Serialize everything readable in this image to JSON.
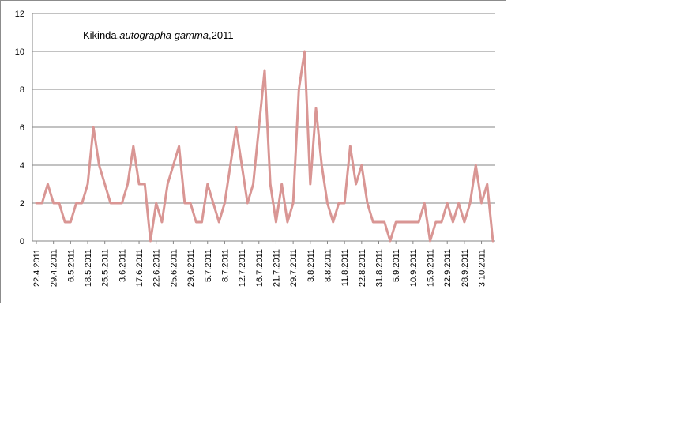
{
  "chart_data": {
    "type": "line",
    "title_parts": [
      "Kikinda,",
      "autographa gamma",
      ",2011"
    ],
    "ylim": [
      0,
      12
    ],
    "yticks": [
      0,
      2,
      4,
      6,
      8,
      10,
      12
    ],
    "grid": true,
    "legend": "none",
    "line_color": "#d99694",
    "x_tick_labels": [
      "22.4.2011",
      "29.4.2011",
      "6.5.2011",
      "18.5.2011",
      "25.5.2011",
      "3.6.2011",
      "17.6.2011",
      "22.6.2011",
      "25.6.2011",
      "29.6.2011",
      "5.7.2011",
      "8.7.2011",
      "12.7.2011",
      "16.7.2011",
      "21.7.2011",
      "29.7.2011",
      "3.8.2011",
      "8.8.2011",
      "11.8.2011",
      "22.8.2011",
      "31.8.2011",
      "5.9.2011",
      "10.9.2011",
      "15.9.2011",
      "22.9.2011",
      "28.9.2011",
      "3.10.2011"
    ],
    "x_tick_positions": [
      0,
      3,
      6,
      9,
      12,
      15,
      18,
      21,
      24,
      27,
      30,
      33,
      36,
      39,
      42,
      45,
      48,
      51,
      54,
      57,
      60,
      63,
      66,
      69,
      72,
      75,
      78
    ],
    "series": [
      {
        "values": [
          2,
          2,
          3,
          2,
          2,
          1,
          1,
          2,
          2,
          3,
          6,
          4,
          3,
          2,
          2,
          2,
          3,
          5,
          3,
          3,
          0,
          2,
          1,
          3,
          4,
          5,
          2,
          2,
          1,
          1,
          3,
          2,
          1,
          2,
          4,
          6,
          4,
          2,
          3,
          6,
          9,
          3,
          1,
          3,
          1,
          2,
          8,
          10,
          3,
          7,
          4,
          2,
          1,
          2,
          2,
          5,
          3,
          4,
          2,
          1,
          1,
          1,
          0,
          1,
          1,
          1,
          1,
          1,
          2,
          0,
          1,
          1,
          2,
          1,
          2,
          1,
          2,
          4,
          2,
          3,
          0
        ]
      }
    ]
  }
}
